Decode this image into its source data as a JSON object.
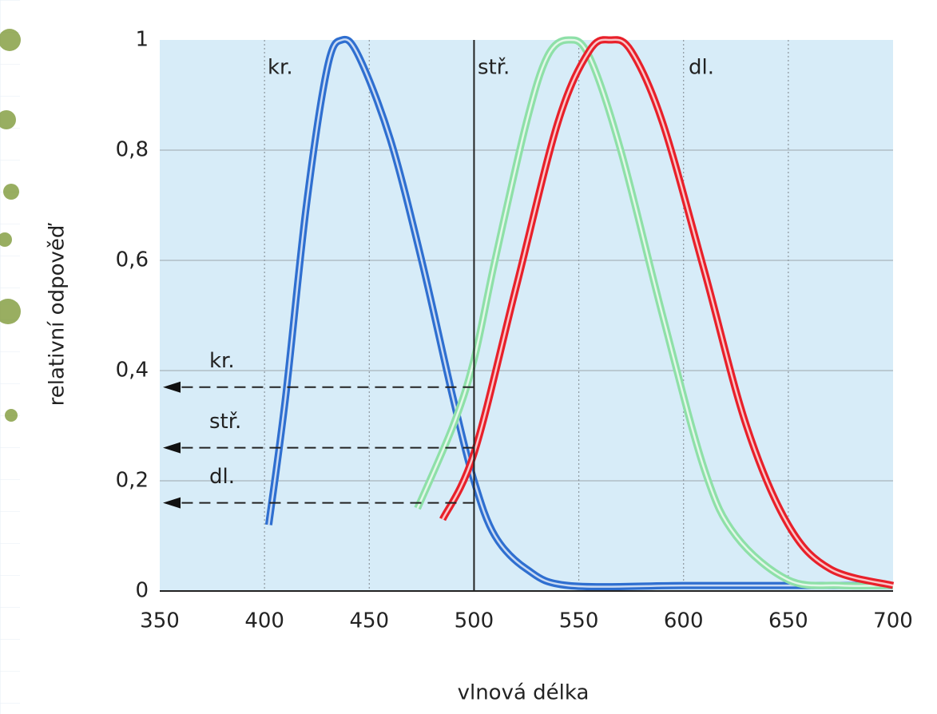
{
  "chart_data": {
    "type": "line",
    "xlabel": "vlnová délka",
    "ylabel": "relativní odpověď",
    "xlim": [
      350,
      700
    ],
    "xticks": [
      350,
      400,
      450,
      500,
      550,
      600,
      650,
      700
    ],
    "ylim": [
      0,
      1
    ],
    "yticks": [
      0,
      {
        "value": 0.2,
        "label": "0,2"
      },
      {
        "value": 0.4,
        "label": "0,4"
      },
      {
        "value": 0.6,
        "label": "0,6"
      },
      {
        "value": 0.8,
        "label": "0,8"
      },
      1
    ],
    "grid": true,
    "vline": 500,
    "series": [
      {
        "name": "kr.",
        "color": "#2f6fd0",
        "x": [
          402,
          410,
          420,
          430,
          437,
          445,
          460,
          475,
          490,
          500,
          510,
          525,
          545,
          600,
          650,
          700
        ],
        "values": [
          0.12,
          0.35,
          0.7,
          0.95,
          1.0,
          0.97,
          0.82,
          0.6,
          0.35,
          0.2,
          0.1,
          0.04,
          0.01,
          0.01,
          0.01,
          0.01
        ]
      },
      {
        "name": "stř.",
        "color": "#8ee0a8",
        "x": [
          473,
          490,
          500,
          510,
          525,
          535,
          545,
          555,
          570,
          590,
          610,
          625,
          650,
          675,
          700
        ],
        "values": [
          0.15,
          0.3,
          0.42,
          0.6,
          0.85,
          0.97,
          1.0,
          0.97,
          0.8,
          0.5,
          0.22,
          0.1,
          0.02,
          0.01,
          0.01
        ]
      },
      {
        "name": "dl.",
        "color": "#e8202a",
        "x": [
          485,
          500,
          520,
          540,
          555,
          565,
          575,
          590,
          610,
          630,
          650,
          670,
          700
        ],
        "values": [
          0.13,
          0.25,
          0.55,
          0.85,
          0.98,
          1.0,
          0.98,
          0.85,
          0.58,
          0.3,
          0.12,
          0.04,
          0.01
        ]
      }
    ],
    "annotations": [
      {
        "text": "kr.",
        "y": 0.37
      },
      {
        "text": "stř.",
        "y": 0.26
      },
      {
        "text": "dl.",
        "y": 0.16
      }
    ]
  }
}
